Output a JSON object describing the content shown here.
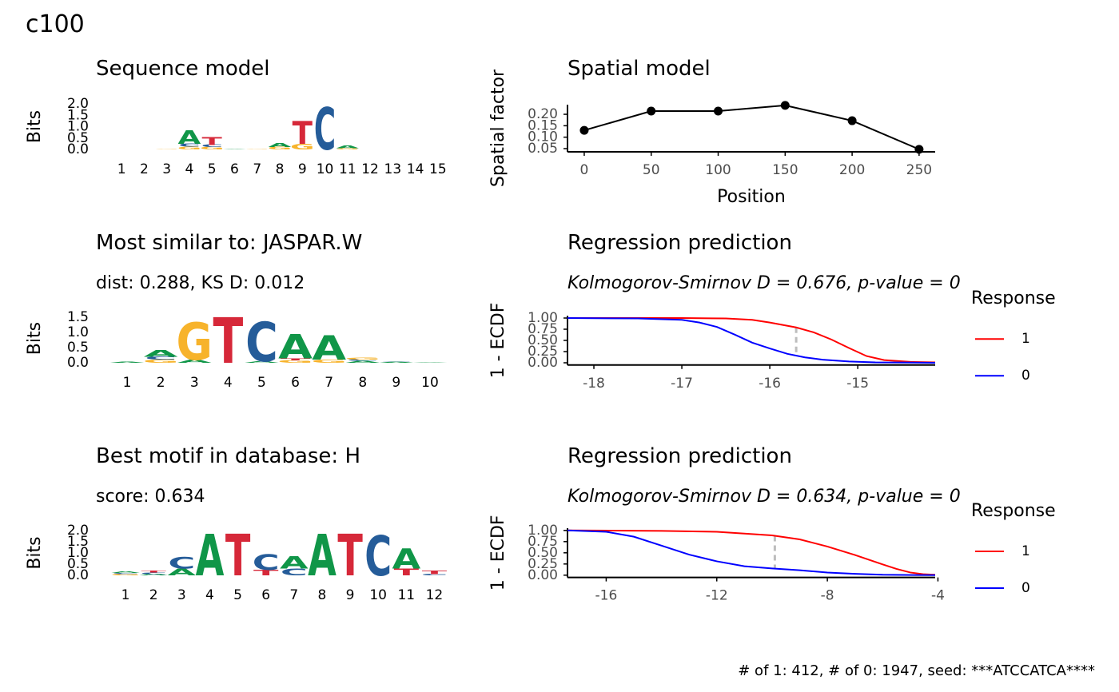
{
  "title": "c100",
  "caption": "# of 1: 412, # of 0: 1947, seed: ***ATCCATCA****",
  "chart_data": [
    {
      "type": "logo",
      "title": "Sequence model",
      "ylabel": "Bits",
      "ylim": [
        0,
        2
      ],
      "yticks": [
        {
          "value": 0,
          "label": "0.0"
        },
        {
          "value": 0.5,
          "label": "0.5"
        },
        {
          "value": 1,
          "label": "1.0"
        },
        {
          "value": 1.5,
          "label": "1.5"
        },
        {
          "value": 2,
          "label": "2.0"
        }
      ],
      "colors": {
        "A": "#109648",
        "C": "#255c99",
        "G": "#f7b32b",
        "T": "#d62839"
      },
      "positions": [
        1,
        2,
        3,
        4,
        5,
        6,
        7,
        8,
        9,
        10,
        11,
        12,
        13,
        14,
        15
      ],
      "stacks": [
        [],
        [],
        [
          {
            "letter": "G",
            "height": 0.03
          }
        ],
        [
          {
            "letter": "G",
            "height": 0.12
          },
          {
            "letter": "C",
            "height": 0.13
          },
          {
            "letter": "A",
            "height": 0.6
          }
        ],
        [
          {
            "letter": "G",
            "height": 0.1
          },
          {
            "letter": "C",
            "height": 0.1
          },
          {
            "letter": "T",
            "height": 0.35
          }
        ],
        [
          {
            "letter": "A",
            "height": 0.03
          }
        ],
        [
          {
            "letter": "G",
            "height": 0.03
          }
        ],
        [
          {
            "letter": "G",
            "height": 0.1
          },
          {
            "letter": "A",
            "height": 0.18
          }
        ],
        [
          {
            "letter": "G",
            "height": 0.25
          },
          {
            "letter": "T",
            "height": 1.0
          }
        ],
        [
          {
            "letter": "C",
            "height": 1.85
          }
        ],
        [
          {
            "letter": "G",
            "height": 0.05
          },
          {
            "letter": "A",
            "height": 0.12
          }
        ],
        [],
        [],
        [],
        []
      ]
    },
    {
      "type": "line",
      "title": "Spatial model",
      "xlabel": "Position",
      "ylabel": "Spatial factor",
      "color": "#000000",
      "x": [
        0,
        50,
        100,
        150,
        200,
        250
      ],
      "values": [
        0.13,
        0.214,
        0.214,
        0.239,
        0.172,
        0.047
      ],
      "xlim": [
        -12.5,
        262
      ],
      "xticks": [
        0,
        50,
        100,
        150,
        200,
        250
      ],
      "ylim": [
        0.036,
        0.242
      ],
      "yticks": [
        0.05,
        {
          "value": 0.1,
          "label": "0.10"
        },
        0.15,
        {
          "value": 0.2,
          "label": "0.20"
        }
      ]
    },
    {
      "type": "logo",
      "title": "Most similar to: JASPAR.W",
      "subtitle": "dist: 0.288, KS D: 0.012",
      "ylabel": "Bits",
      "ylim": [
        0,
        1.6
      ],
      "yticks": [
        {
          "value": 0,
          "label": "0.0"
        },
        {
          "value": 0.5,
          "label": "0.5"
        },
        {
          "value": 1,
          "label": "1.0"
        },
        {
          "value": 1.5,
          "label": "1.5"
        }
      ],
      "colors": {
        "A": "#109648",
        "C": "#255c99",
        "G": "#f7b32b",
        "T": "#d62839"
      },
      "positions": [
        1,
        2,
        3,
        4,
        5,
        6,
        7,
        8,
        9,
        10
      ],
      "stacks": [
        [
          {
            "letter": "A",
            "height": 0.03
          }
        ],
        [
          {
            "letter": "G",
            "height": 0.1
          },
          {
            "letter": "C",
            "height": 0.1
          },
          {
            "letter": "A",
            "height": 0.22
          }
        ],
        [
          {
            "letter": "A",
            "height": 0.1
          },
          {
            "letter": "G",
            "height": 1.24
          }
        ],
        [
          {
            "letter": "T",
            "height": 1.5
          }
        ],
        [
          {
            "letter": "A",
            "height": 0.05
          },
          {
            "letter": "C",
            "height": 1.3
          }
        ],
        [
          {
            "letter": "G",
            "height": 0.08
          },
          {
            "letter": "T",
            "height": 0.07
          },
          {
            "letter": "A",
            "height": 0.8
          }
        ],
        [
          {
            "letter": "G",
            "height": 0.1
          },
          {
            "letter": "A",
            "height": 0.8
          }
        ],
        [
          {
            "letter": "A",
            "height": 0.06
          },
          {
            "letter": "C",
            "height": 0.05
          },
          {
            "letter": "G",
            "height": 0.06
          }
        ],
        [
          {
            "letter": "A",
            "height": 0.03
          },
          {
            "letter": "C",
            "height": 0.02
          }
        ],
        [
          {
            "letter": "A",
            "height": 0.02
          }
        ]
      ]
    },
    {
      "type": "ecdf",
      "title": "Regression prediction",
      "subtitle": "Kolmogorov-Smirnov D = 0.676, p-value = 0",
      "ylabel": "1 - ECDF",
      "legend_title": "Response",
      "legend": "right",
      "ks_x": -15.7,
      "xlim": [
        -18.3,
        -14.12
      ],
      "xticks": [
        -18,
        -17,
        -16,
        -15
      ],
      "ylim": [
        -0.05,
        1.05
      ],
      "yticks": [
        {
          "value": 0,
          "label": "0.00"
        },
        {
          "value": 0.25,
          "label": "0.25"
        },
        {
          "value": 0.5,
          "label": "0.50"
        },
        {
          "value": 0.75,
          "label": "0.75"
        },
        {
          "value": 1,
          "label": "1.00"
        }
      ],
      "series": [
        {
          "name": "1",
          "color": "#ff0000",
          "x": [
            -18.3,
            -17,
            -16.5,
            -16.2,
            -16,
            -15.7,
            -15.5,
            -15.3,
            -15.1,
            -14.9,
            -14.7,
            -14.4,
            -14.12
          ],
          "values": [
            1,
            1,
            0.99,
            0.96,
            0.9,
            0.79,
            0.68,
            0.52,
            0.33,
            0.15,
            0.06,
            0.02,
            0.01
          ]
        },
        {
          "name": "0",
          "color": "#0000ff",
          "x": [
            -18.3,
            -17.5,
            -17,
            -16.8,
            -16.6,
            -16.4,
            -16.2,
            -16,
            -15.8,
            -15.6,
            -15.4,
            -15.1,
            -14.8,
            -14.12
          ],
          "values": [
            1,
            0.99,
            0.96,
            0.9,
            0.8,
            0.63,
            0.45,
            0.32,
            0.2,
            0.12,
            0.07,
            0.03,
            0.01,
            0
          ]
        }
      ]
    },
    {
      "type": "logo",
      "title": "Best motif in database: H",
      "subtitle": "score: 0.634",
      "ylabel": "Bits",
      "ylim": [
        0,
        2
      ],
      "yticks": [
        {
          "value": 0,
          "label": "0.0"
        },
        {
          "value": 0.5,
          "label": "0.5"
        },
        {
          "value": 1,
          "label": "1.0"
        },
        {
          "value": 1.5,
          "label": "1.5"
        },
        {
          "value": 2,
          "label": "2.0"
        }
      ],
      "colors": {
        "A": "#109648",
        "C": "#255c99",
        "G": "#f7b32b",
        "T": "#d62839"
      },
      "positions": [
        1,
        2,
        3,
        4,
        5,
        6,
        7,
        8,
        9,
        10,
        11,
        12
      ],
      "stacks": [
        [
          {
            "letter": "G",
            "height": 0.06
          },
          {
            "letter": "C",
            "height": 0.05
          },
          {
            "letter": "A",
            "height": 0.06
          }
        ],
        [
          {
            "letter": "A",
            "height": 0.06
          },
          {
            "letter": "C",
            "height": 0.06
          },
          {
            "letter": "T",
            "height": 0.1
          }
        ],
        [
          {
            "letter": "A",
            "height": 0.3
          },
          {
            "letter": "C",
            "height": 0.5
          }
        ],
        [
          {
            "letter": "A",
            "height": 1.85
          }
        ],
        [
          {
            "letter": "T",
            "height": 1.85
          }
        ],
        [
          {
            "letter": "T",
            "height": 0.25
          },
          {
            "letter": "C",
            "height": 0.7
          }
        ],
        [
          {
            "letter": "C",
            "height": 0.3
          },
          {
            "letter": "A",
            "height": 0.55
          }
        ],
        [
          {
            "letter": "A",
            "height": 1.85
          }
        ],
        [
          {
            "letter": "T",
            "height": 1.85
          }
        ],
        [
          {
            "letter": "C",
            "height": 1.8
          }
        ],
        [
          {
            "letter": "T",
            "height": 0.3
          },
          {
            "letter": "A",
            "height": 0.9
          }
        ],
        [
          {
            "letter": "C",
            "height": 0.06
          },
          {
            "letter": "T",
            "height": 0.15
          }
        ]
      ]
    },
    {
      "type": "ecdf",
      "title": "Regression prediction",
      "subtitle": "Kolmogorov-Smirnov D = 0.634, p-value = 0",
      "ylabel": "1 - ECDF",
      "legend_title": "Response",
      "legend": "right",
      "ks_x": -9.9,
      "xlim": [
        -17.4,
        -4.1
      ],
      "xticks": [
        -16,
        -12,
        -8,
        -4
      ],
      "ylim": [
        -0.05,
        1.05
      ],
      "yticks": [
        {
          "value": 0,
          "label": "0.00"
        },
        {
          "value": 0.25,
          "label": "0.25"
        },
        {
          "value": 0.5,
          "label": "0.50"
        },
        {
          "value": 0.75,
          "label": "0.75"
        },
        {
          "value": 1,
          "label": "1.00"
        }
      ],
      "series": [
        {
          "name": "1",
          "color": "#ff0000",
          "x": [
            -17.4,
            -14,
            -12,
            -10,
            -9,
            -8,
            -7,
            -6,
            -5.5,
            -5,
            -4.5,
            -4.1
          ],
          "values": [
            1,
            0.99,
            0.97,
            0.89,
            0.8,
            0.64,
            0.45,
            0.24,
            0.14,
            0.06,
            0.02,
            0.01
          ]
        },
        {
          "name": "0",
          "color": "#0000ff",
          "x": [
            -17.4,
            -16,
            -15,
            -14,
            -13,
            -12,
            -11,
            -10,
            -9,
            -8,
            -7,
            -6,
            -4.1
          ],
          "values": [
            1,
            0.97,
            0.86,
            0.66,
            0.46,
            0.31,
            0.2,
            0.15,
            0.11,
            0.06,
            0.03,
            0.01,
            0
          ]
        }
      ]
    }
  ]
}
